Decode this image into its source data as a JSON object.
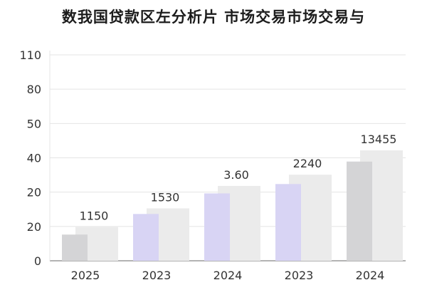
{
  "chart_data": {
    "type": "bar",
    "title": "数我国贷款区左分析片  市场交易市场交易与",
    "xlabel": "",
    "ylabel": "",
    "categories": [
      "2025",
      "2023",
      "2024",
      "2023",
      "2024"
    ],
    "y_tick_labels": [
      "0",
      "20",
      "20",
      "40",
      "50",
      "80",
      "110"
    ],
    "ylim": [
      0,
      110
    ],
    "grid": true,
    "legend": "none",
    "series": [
      {
        "color": "#d6d6d8",
        "values": [
          14,
          25,
          36,
          41,
          53
        ]
      },
      {
        "color": "#ebebeb",
        "values": [
          18,
          28,
          40,
          46,
          59
        ],
        "data_labels": [
          "1150",
          "1530",
          "3.60",
          "2240",
          "13455"
        ]
      }
    ],
    "front_bar_colors": [
      "#d4d4d6",
      "#d8d4f4",
      "#d8d4f4",
      "#d8d4f4",
      "#d4d4d6"
    ]
  }
}
